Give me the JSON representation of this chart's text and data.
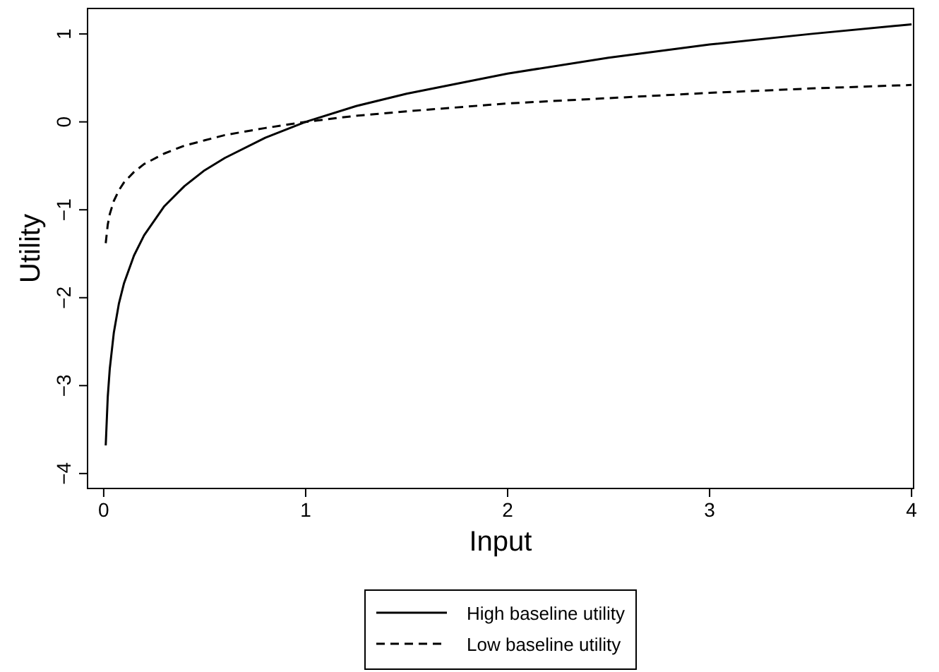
{
  "chart_data": {
    "type": "line",
    "xlabel": "Input",
    "ylabel": "Utility",
    "x": [
      0.01,
      0.02,
      0.03,
      0.05,
      0.075,
      0.1,
      0.15,
      0.2,
      0.3,
      0.4,
      0.5,
      0.6,
      0.8,
      1,
      1.25,
      1.5,
      2,
      2.5,
      3,
      3.5,
      4
    ],
    "series": [
      {
        "name": "High baseline utility",
        "color": "#000000",
        "line_style": "solid",
        "values": [
          -3.68,
          -3.13,
          -2.81,
          -2.4,
          -2.07,
          -1.84,
          -1.52,
          -1.29,
          -0.96,
          -0.73,
          -0.55,
          -0.41,
          -0.18,
          0,
          0.18,
          0.32,
          0.55,
          0.73,
          0.88,
          1.0,
          1.11
        ]
      },
      {
        "name": "Low baseline utility",
        "color": "#000000",
        "line_style": "dashed",
        "values": [
          -1.38,
          -1.17,
          -1.05,
          -0.9,
          -0.78,
          -0.69,
          -0.57,
          -0.48,
          -0.36,
          -0.27,
          -0.21,
          -0.15,
          -0.07,
          0,
          0.07,
          0.12,
          0.21,
          0.27,
          0.33,
          0.38,
          0.42
        ]
      }
    ],
    "xlim": [
      -0.08,
      4.01
    ],
    "xticks": [
      0,
      1,
      2,
      3,
      4
    ],
    "ylim": [
      -4.17,
      1.29
    ],
    "yticks": [
      {
        "value": -4,
        "label": "−4"
      },
      {
        "value": -3,
        "label": "−3"
      },
      {
        "value": -2,
        "label": "−2"
      },
      {
        "value": -1,
        "label": "−1"
      },
      0,
      1
    ],
    "grid": false,
    "legend": "bottom",
    "marker": "none"
  }
}
